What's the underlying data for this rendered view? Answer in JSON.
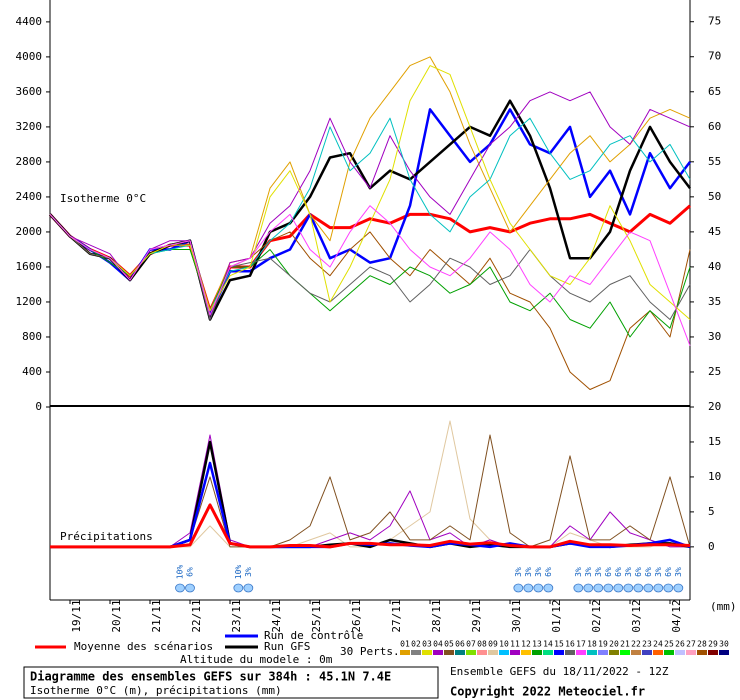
{
  "chart_data": [
    {
      "type": "line",
      "title": "Isotherme 0°C",
      "x": [
        0,
        12,
        24,
        36,
        48,
        60,
        72,
        84,
        96,
        108,
        120,
        132,
        144,
        156,
        168,
        180,
        192,
        204,
        216,
        228,
        240,
        252,
        264,
        276,
        288,
        300,
        312,
        324,
        336,
        348,
        360,
        372,
        384
      ],
      "xlim": [
        0,
        384
      ],
      "xticks": [
        {
          "value": 12,
          "label": "19/11"
        },
        {
          "value": 36,
          "label": "20/11"
        },
        {
          "value": 60,
          "label": "21/11"
        },
        {
          "value": 84,
          "label": "22/11"
        },
        {
          "value": 108,
          "label": "23/11"
        },
        {
          "value": 132,
          "label": "24/11"
        },
        {
          "value": 156,
          "label": "25/11"
        },
        {
          "value": 180,
          "label": "26/11"
        },
        {
          "value": 204,
          "label": "27/11"
        },
        {
          "value": 228,
          "label": "28/11"
        },
        {
          "value": 252,
          "label": "29/11"
        },
        {
          "value": 276,
          "label": "30/11"
        },
        {
          "value": 300,
          "label": "01/12"
        },
        {
          "value": 324,
          "label": "02/12"
        },
        {
          "value": 348,
          "label": "03/12"
        },
        {
          "value": 372,
          "label": "04/12"
        }
      ],
      "ylim": [
        0,
        4650
      ],
      "yticks": [
        0,
        400,
        800,
        1200,
        1600,
        2000,
        2400,
        2800,
        3200,
        3600,
        4000,
        4400
      ],
      "y2lim": [
        20,
        78.1
      ],
      "y2ticks": [
        25,
        30,
        35,
        40,
        45,
        50,
        55,
        60,
        65,
        70,
        75
      ],
      "series": [
        {
          "name": "Moyenne des scénarios",
          "color": "#ff0000",
          "values": [
            2200,
            1950,
            1800,
            1700,
            1500,
            1750,
            1850,
            1850,
            1100,
            1600,
            1600,
            1900,
            1950,
            2200,
            2050,
            2050,
            2150,
            2100,
            2200,
            2200,
            2150,
            2000,
            2050,
            2000,
            2100,
            2150,
            2150,
            2200,
            2100,
            2000,
            2200,
            2100,
            2300
          ]
        },
        {
          "name": "Run de contrôle",
          "color": "#0000ff",
          "values": [
            2200,
            1950,
            1800,
            1650,
            1450,
            1800,
            1800,
            1900,
            1050,
            1550,
            1550,
            1700,
            1800,
            2200,
            1700,
            1800,
            1650,
            1700,
            2300,
            3400,
            3100,
            2800,
            3000,
            3400,
            3000,
            2900,
            3200,
            2400,
            2700,
            2200,
            2900,
            2500,
            2800
          ]
        },
        {
          "name": "Run GFS",
          "color": "#000000",
          "values": [
            2200,
            1950,
            1750,
            1700,
            1450,
            1750,
            1850,
            1900,
            1000,
            1450,
            1500,
            2000,
            2100,
            2400,
            2850,
            2900,
            2500,
            2700,
            2600,
            2800,
            3000,
            3200,
            3100,
            3500,
            3100,
            2500,
            1700,
            1700,
            2000,
            2700,
            3200,
            2800,
            2500
          ]
        },
        {
          "name": "01",
          "color": "#e0a000",
          "values": [
            2200,
            1950,
            1750,
            1700,
            1450,
            1800,
            1850,
            1900,
            1100,
            1650,
            1700,
            2500,
            2800,
            2200,
            1900,
            2800,
            3300,
            3600,
            3900,
            4000,
            3600,
            3000,
            2500,
            2000,
            2300,
            2600,
            2900,
            3100,
            2800,
            3000,
            3300,
            3400,
            3300
          ]
        },
        {
          "name": "28",
          "color": "#a05000",
          "values": [
            2200,
            1950,
            1800,
            1700,
            1500,
            1750,
            1850,
            1850,
            1050,
            1600,
            1700,
            1900,
            2000,
            1700,
            1500,
            1800,
            2000,
            1700,
            1500,
            1800,
            1600,
            1400,
            1700,
            1300,
            1200,
            900,
            400,
            200,
            300,
            900,
            1100,
            800,
            1800
          ]
        },
        {
          "name": "11",
          "color": "#a000c0",
          "values": [
            2200,
            1950,
            1850,
            1750,
            1450,
            1800,
            1900,
            1900,
            1000,
            1650,
            1700,
            2100,
            2300,
            2700,
            3300,
            2800,
            2500,
            3100,
            2700,
            2400,
            2200,
            2600,
            3000,
            3200,
            3500,
            3600,
            3500,
            3600,
            3200,
            3000,
            3400,
            3300,
            3200
          ]
        },
        {
          "name": "13",
          "color": "#00a000",
          "values": [
            2200,
            1950,
            1800,
            1650,
            1500,
            1750,
            1800,
            1800,
            1100,
            1600,
            1600,
            1800,
            1500,
            1300,
            1100,
            1300,
            1500,
            1400,
            1600,
            1500,
            1300,
            1400,
            1600,
            1200,
            1100,
            1300,
            1000,
            900,
            1200,
            800,
            1100,
            900,
            1600
          ]
        },
        {
          "name": "18",
          "color": "#00c0c0",
          "values": [
            2200,
            1950,
            1800,
            1700,
            1500,
            1750,
            1800,
            1850,
            1100,
            1550,
            1600,
            1900,
            2100,
            2500,
            3200,
            2700,
            2900,
            3300,
            2600,
            2200,
            2000,
            2400,
            2600,
            3100,
            3300,
            2900,
            2600,
            2700,
            3000,
            3100,
            2800,
            3000,
            2600
          ]
        },
        {
          "name": "16",
          "color": "#606060",
          "values": [
            2200,
            1950,
            1750,
            1700,
            1450,
            1800,
            1850,
            1900,
            1000,
            1600,
            1650,
            1700,
            1500,
            1300,
            1200,
            1400,
            1600,
            1500,
            1200,
            1400,
            1700,
            1600,
            1400,
            1500,
            1800,
            1500,
            1300,
            1200,
            1400,
            1500,
            1200,
            1000,
            1400
          ]
        },
        {
          "name": "03",
          "color": "#e0e000",
          "values": [
            2200,
            1950,
            1800,
            1700,
            1500,
            1750,
            1850,
            1850,
            1100,
            1500,
            1600,
            2400,
            2700,
            2200,
            1200,
            1600,
            2100,
            2600,
            3500,
            3900,
            3800,
            3200,
            2600,
            2100,
            1800,
            1500,
            1400,
            1700,
            2300,
            1900,
            1400,
            1200,
            1000
          ]
        },
        {
          "name": "17",
          "color": "#ff40ff",
          "values": [
            2200,
            1950,
            1800,
            1700,
            1450,
            1800,
            1850,
            1900,
            1050,
            1600,
            1700,
            2000,
            2200,
            1800,
            1600,
            2000,
            2300,
            2100,
            1800,
            1600,
            1500,
            1700,
            2000,
            1800,
            1400,
            1200,
            1500,
            1400,
            1700,
            2000,
            1900,
            1300,
            700
          ]
        }
      ]
    },
    {
      "type": "line",
      "title": "Précipitations",
      "y_unit": "(mm)",
      "x": [
        0,
        12,
        24,
        36,
        48,
        60,
        72,
        84,
        96,
        108,
        120,
        132,
        144,
        156,
        168,
        180,
        192,
        204,
        216,
        228,
        240,
        252,
        264,
        276,
        288,
        300,
        312,
        324,
        336,
        348,
        360,
        372,
        384
      ],
      "xlim": [
        0,
        384
      ],
      "ylim": [
        -7.6,
        20
      ],
      "yticks": [
        0,
        5,
        10,
        15,
        20
      ],
      "series": [
        {
          "name": "09",
          "color": "#e0c8a0",
          "values": [
            0,
            0,
            0,
            0,
            0,
            0,
            0,
            0,
            3,
            0,
            0,
            0,
            0,
            1,
            2,
            0,
            0,
            1,
            3,
            5,
            18,
            4,
            1,
            0,
            0,
            0,
            2,
            1,
            0,
            0,
            0,
            1,
            0
          ]
        },
        {
          "name": "04",
          "color": "#a000c0",
          "values": [
            0,
            0,
            0,
            0,
            0,
            0,
            0,
            2,
            16,
            1,
            0,
            0,
            0,
            0,
            1,
            2,
            1,
            3,
            8,
            1,
            2,
            0,
            1,
            0,
            0,
            0,
            3,
            1,
            5,
            2,
            1,
            0,
            0
          ]
        },
        {
          "name": "05",
          "color": "#805020",
          "values": [
            0,
            0,
            0,
            0,
            0,
            0,
            0,
            1,
            10,
            0,
            0,
            0,
            1,
            3,
            10,
            1,
            2,
            5,
            1,
            1,
            3,
            1,
            16,
            2,
            0,
            1,
            13,
            1,
            1,
            3,
            1,
            10,
            0
          ]
        },
        {
          "name": "Run GFS",
          "color": "#000000",
          "values": [
            0,
            0,
            0,
            0,
            0,
            0,
            0,
            1,
            15,
            0.5,
            0,
            0,
            0,
            0,
            0.3,
            0.5,
            0,
            1,
            0.5,
            0,
            0.5,
            0,
            0.3,
            0,
            0,
            0,
            0.5,
            0.3,
            0,
            0.3,
            0.5,
            0.5,
            0
          ]
        },
        {
          "name": "Run de contrôle",
          "color": "#0000ff",
          "values": [
            0,
            0,
            0,
            0,
            0,
            0,
            0,
            1,
            12,
            0.5,
            0,
            0,
            0,
            0,
            0,
            0.5,
            0.3,
            0.5,
            0.2,
            0,
            0.5,
            0.3,
            0,
            0.5,
            0,
            0,
            0.5,
            0,
            0,
            0.2,
            0.5,
            1,
            0
          ]
        },
        {
          "name": "Moyenne des scénarios",
          "color": "#ff0000",
          "values": [
            0,
            0,
            0,
            0,
            0,
            0,
            0,
            0.3,
            6,
            0.5,
            0,
            0,
            0.2,
            0.2,
            0,
            0.5,
            0.5,
            0.3,
            0.3,
            0.2,
            0.8,
            0.4,
            0.6,
            0.2,
            0,
            0,
            0.8,
            0.3,
            0.3,
            0.2,
            0.3,
            0.3,
            0.2
          ]
        }
      ],
      "snow": [
        {
          "x": 78,
          "label": "10%"
        },
        {
          "x": 84,
          "label": "6%"
        },
        {
          "x": 113,
          "label": "10%"
        },
        {
          "x": 119,
          "label": "3%"
        },
        {
          "x": 281,
          "label": "3%"
        },
        {
          "x": 287,
          "label": "3%"
        },
        {
          "x": 293,
          "label": "3%"
        },
        {
          "x": 299,
          "label": "6%"
        },
        {
          "x": 317,
          "label": "3%"
        },
        {
          "x": 323,
          "label": "3%"
        },
        {
          "x": 329,
          "label": "3%"
        },
        {
          "x": 335,
          "label": "6%"
        },
        {
          "x": 341,
          "label": "6%"
        },
        {
          "x": 347,
          "label": "3%"
        },
        {
          "x": 353,
          "label": "6%"
        },
        {
          "x": 359,
          "label": "6%"
        },
        {
          "x": 365,
          "label": "3%"
        },
        {
          "x": 371,
          "label": "6%"
        },
        {
          "x": 377,
          "label": "3%"
        }
      ]
    }
  ],
  "legend": {
    "mean": "Moyenne des scénarios",
    "control": "Run de contrôle",
    "gfs": "Run GFS",
    "altitude": "Altitude du modele : 0m",
    "perturbations": "30 Perts.",
    "members": [
      {
        "name": "01",
        "color": "#e0a000"
      },
      {
        "name": "02",
        "color": "#808080"
      },
      {
        "name": "03",
        "color": "#e0e000"
      },
      {
        "name": "04",
        "color": "#a000c0"
      },
      {
        "name": "05",
        "color": "#805020"
      },
      {
        "name": "06",
        "color": "#008080"
      },
      {
        "name": "07",
        "color": "#80e000"
      },
      {
        "name": "08",
        "color": "#ff9090"
      },
      {
        "name": "09",
        "color": "#e0c8a0"
      },
      {
        "name": "10",
        "color": "#00c0ff"
      },
      {
        "name": "11",
        "color": "#a000c0"
      },
      {
        "name": "12",
        "color": "#ffc000"
      },
      {
        "name": "13",
        "color": "#00a000"
      },
      {
        "name": "14",
        "color": "#00e080"
      },
      {
        "name": "15",
        "color": "#0000ff"
      },
      {
        "name": "16",
        "color": "#606060"
      },
      {
        "name": "17",
        "color": "#ff40ff"
      },
      {
        "name": "18",
        "color": "#00c0c0"
      },
      {
        "name": "19",
        "color": "#8080ff"
      },
      {
        "name": "20",
        "color": "#808000"
      },
      {
        "name": "21",
        "color": "#00ff00"
      },
      {
        "name": "22",
        "color": "#c08040"
      },
      {
        "name": "23",
        "color": "#4040c0"
      },
      {
        "name": "24",
        "color": "#ff6000"
      },
      {
        "name": "25",
        "color": "#00c000"
      },
      {
        "name": "26",
        "color": "#c0c0ff"
      },
      {
        "name": "27",
        "color": "#ffa0c0"
      },
      {
        "name": "28",
        "color": "#a05000"
      },
      {
        "name": "29",
        "color": "#800000"
      },
      {
        "name": "30",
        "color": "#000080"
      }
    ]
  },
  "footer": {
    "title": "Diagramme des ensembles GEFS sur 384h : 45.1N 7.4E",
    "subtitle": "Isotherme 0°C (m), précipitations (mm)",
    "run": "Ensemble GEFS du 18/11/2022 - 12Z",
    "copyright": "Copyright 2022 Meteociel.fr"
  }
}
